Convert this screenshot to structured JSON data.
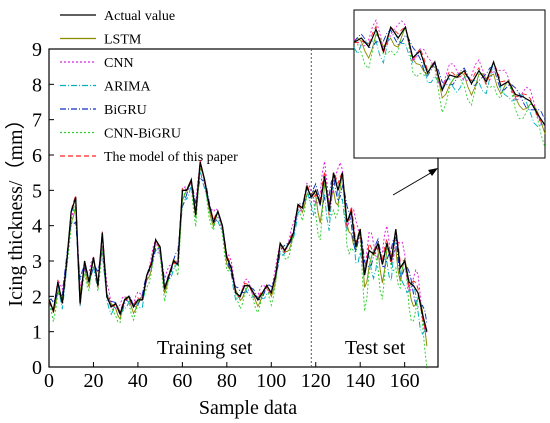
{
  "chart_data": {
    "type": "line",
    "xlabel": "Sample data",
    "ylabel": "Icing thickness/（mm）",
    "xlim": [
      0,
      175
    ],
    "ylim": [
      0,
      9
    ],
    "xticks": [
      0,
      20,
      40,
      60,
      80,
      100,
      120,
      140,
      160
    ],
    "yticks": [
      0,
      1,
      2,
      3,
      4,
      5,
      6,
      7,
      8,
      9
    ],
    "legend_position": "top-left",
    "split_x": 118,
    "annotations": {
      "training": "Training set",
      "test": "Test set"
    },
    "inset": {
      "x_range": [
        118,
        170
      ],
      "position": "top-right"
    },
    "actual_points": [
      [
        0,
        1.9
      ],
      [
        2,
        1.6
      ],
      [
        4,
        2.4
      ],
      [
        6,
        1.8
      ],
      [
        8,
        3.0
      ],
      [
        10,
        4.4
      ],
      [
        12,
        4.8
      ],
      [
        13,
        3.2
      ],
      [
        14,
        1.8
      ],
      [
        16,
        3.0
      ],
      [
        18,
        2.4
      ],
      [
        20,
        3.1
      ],
      [
        22,
        2.3
      ],
      [
        24,
        3.8
      ],
      [
        26,
        2.0
      ],
      [
        28,
        1.7
      ],
      [
        30,
        1.8
      ],
      [
        32,
        1.5
      ],
      [
        34,
        1.9
      ],
      [
        36,
        2.0
      ],
      [
        38,
        1.7
      ],
      [
        40,
        1.9
      ],
      [
        42,
        1.9
      ],
      [
        44,
        2.6
      ],
      [
        46,
        2.9
      ],
      [
        48,
        3.6
      ],
      [
        50,
        3.4
      ],
      [
        52,
        2.2
      ],
      [
        54,
        2.6
      ],
      [
        56,
        3.0
      ],
      [
        58,
        2.9
      ],
      [
        60,
        5.0
      ],
      [
        62,
        5.0
      ],
      [
        64,
        5.3
      ],
      [
        66,
        4.3
      ],
      [
        68,
        5.8
      ],
      [
        70,
        5.3
      ],
      [
        72,
        4.6
      ],
      [
        74,
        4.1
      ],
      [
        76,
        4.4
      ],
      [
        78,
        4.0
      ],
      [
        80,
        3.1
      ],
      [
        82,
        2.8
      ],
      [
        84,
        2.1
      ],
      [
        86,
        2.0
      ],
      [
        88,
        2.3
      ],
      [
        90,
        2.3
      ],
      [
        92,
        2.1
      ],
      [
        94,
        1.9
      ],
      [
        96,
        2.1
      ],
      [
        98,
        2.3
      ],
      [
        100,
        2.1
      ],
      [
        102,
        2.6
      ],
      [
        104,
        3.5
      ],
      [
        106,
        3.3
      ],
      [
        108,
        3.5
      ],
      [
        110,
        3.8
      ],
      [
        112,
        4.6
      ],
      [
        114,
        4.5
      ],
      [
        116,
        5.1
      ],
      [
        118,
        4.8
      ],
      [
        120,
        5.0
      ],
      [
        122,
        4.6
      ],
      [
        124,
        5.4
      ],
      [
        126,
        4.4
      ],
      [
        128,
        5.5
      ],
      [
        130,
        5.0
      ],
      [
        132,
        5.5
      ],
      [
        134,
        4.1
      ],
      [
        136,
        4.4
      ],
      [
        138,
        3.4
      ],
      [
        140,
        3.9
      ],
      [
        142,
        2.6
      ],
      [
        144,
        3.3
      ],
      [
        146,
        3.2
      ],
      [
        148,
        3.5
      ],
      [
        150,
        2.9
      ],
      [
        152,
        3.5
      ],
      [
        154,
        3.0
      ],
      [
        156,
        3.9
      ],
      [
        158,
        2.8
      ],
      [
        160,
        3.0
      ],
      [
        162,
        2.4
      ],
      [
        164,
        2.3
      ],
      [
        166,
        2.1
      ],
      [
        168,
        1.5
      ],
      [
        170,
        1.0
      ]
    ],
    "series": [
      {
        "name": "Actual value",
        "color": "#000000",
        "dash": "",
        "offset": 0.0,
        "noise": 0.0,
        "smooth": 0.0
      },
      {
        "name": "LSTM",
        "color": "#8a8a00",
        "dash": "",
        "offset": -0.15,
        "noise": 0.22,
        "smooth": 0.15
      },
      {
        "name": "CNN",
        "color": "#e020e0",
        "dash": "2,2",
        "offset": 0.1,
        "noise": 0.3,
        "smooth": 0.35
      },
      {
        "name": "ARIMA",
        "color": "#00b0c0",
        "dash": "6,2,1,2",
        "offset": -0.2,
        "noise": 0.25,
        "smooth": 0.1
      },
      {
        "name": "BiGRU",
        "color": "#1030c0",
        "dash": "6,2,1,2",
        "offset": -0.05,
        "noise": 0.2,
        "smooth": 0.45
      },
      {
        "name": "CNN-BiGRU",
        "color": "#30d030",
        "dash": "2,2",
        "offset": -0.35,
        "noise": 0.35,
        "smooth": 0.05
      },
      {
        "name": "The model of this paper",
        "color": "#ff2020",
        "dash": "5,3",
        "offset": 0.02,
        "noise": 0.1,
        "smooth": 0.0
      }
    ]
  }
}
